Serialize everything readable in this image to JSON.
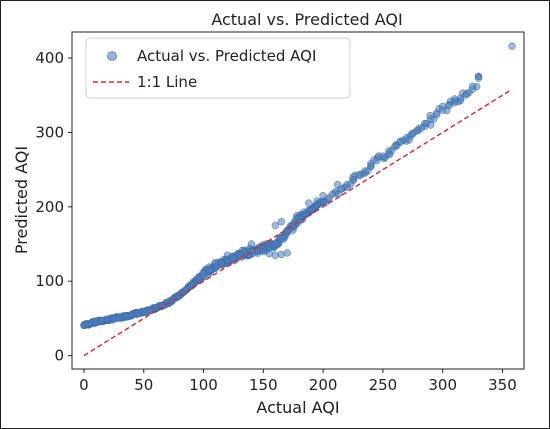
{
  "chart_data": {
    "type": "scatter",
    "title": "Actual vs. Predicted AQI",
    "xlabel": "Actual AQI",
    "ylabel": "Predicted AQI",
    "xlim": [
      -10,
      368
    ],
    "ylim": [
      -18,
      435
    ],
    "xticks": [
      0,
      50,
      100,
      150,
      200,
      250,
      300,
      350
    ],
    "yticks": [
      0,
      100,
      200,
      300,
      400
    ],
    "grid": false,
    "legend_position": "top-left",
    "series": [
      {
        "name": "Actual vs. Predicted AQI",
        "kind": "scatter",
        "color": "#4c7fbe",
        "x": [
          0,
          3,
          6,
          10,
          15,
          20,
          25,
          30,
          35,
          40,
          45,
          50,
          55,
          60,
          65,
          70,
          75,
          80,
          85,
          90,
          95,
          100,
          105,
          110,
          115,
          120,
          125,
          130,
          135,
          140,
          145,
          150,
          155,
          160,
          165,
          170,
          175,
          180,
          185,
          190,
          195,
          200,
          205,
          210,
          215,
          220,
          225,
          230,
          235,
          240,
          245,
          250,
          255,
          260,
          265,
          270,
          275,
          280,
          285,
          290,
          295,
          300,
          305,
          310,
          315,
          320,
          325,
          330,
          358,
          150,
          155,
          160,
          165,
          170,
          160,
          165,
          172,
          178,
          188,
          195,
          200,
          212,
          225,
          240,
          255,
          272,
          290,
          310,
          330,
          140,
          120,
          110
        ],
        "y": [
          41,
          42,
          44,
          45,
          47,
          48,
          50,
          51,
          53,
          55,
          57,
          58,
          61,
          64,
          67,
          71,
          76,
          81,
          88,
          95,
          103,
          110,
          115,
          120,
          124,
          128,
          131,
          135,
          138,
          140,
          142,
          145,
          147,
          150,
          157,
          165,
          175,
          185,
          190,
          196,
          202,
          207,
          212,
          218,
          224,
          230,
          236,
          243,
          248,
          255,
          262,
          268,
          275,
          281,
          287,
          293,
          298,
          305,
          312,
          318,
          324,
          330,
          336,
          340,
          346,
          352,
          358,
          375,
          416,
          140,
          137,
          135,
          136,
          138,
          175,
          180,
          170,
          188,
          205,
          208,
          215,
          230,
          240,
          258,
          272,
          290,
          310,
          345,
          373,
          150,
          135,
          125
        ]
      },
      {
        "name": "1:1 Line",
        "kind": "line",
        "style": "dashed",
        "color": "#d62728",
        "x": [
          0,
          358
        ],
        "y": [
          0,
          358
        ]
      }
    ]
  }
}
